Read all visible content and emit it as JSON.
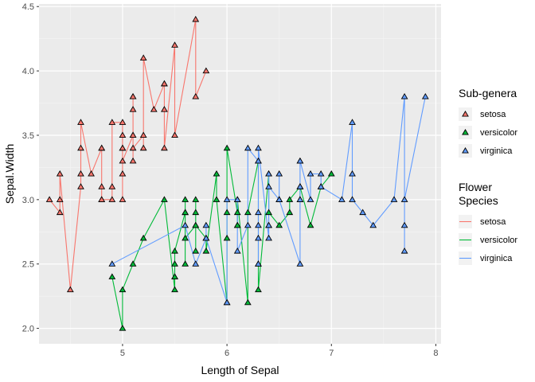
{
  "chart_data": {
    "type": "line",
    "xlabel": "Length of Sepal",
    "ylabel": "Sepal.Width",
    "xlim": [
      4.2,
      8.05
    ],
    "ylim": [
      1.88,
      4.52
    ],
    "xticks": [
      5,
      6,
      7,
      8
    ],
    "yticks": [
      2.0,
      2.5,
      3.0,
      3.5,
      4.0,
      4.5
    ],
    "ytick_labels": [
      "2.0",
      "2.5",
      "3.0",
      "3.5",
      "4.0",
      "4.5"
    ],
    "grid": true,
    "legend_position": "right",
    "shape_legend": {
      "title": "Sub-genera",
      "entries": [
        "setosa",
        "versicolor",
        "virginica"
      ]
    },
    "line_legend": {
      "title_lines": [
        "Flower",
        "Species"
      ],
      "entries": [
        "setosa",
        "versicolor",
        "virginica"
      ]
    },
    "series": [
      {
        "name": "setosa",
        "color": "#F8766D",
        "points": [
          [
            4.3,
            3.0
          ],
          [
            4.4,
            2.9
          ],
          [
            4.4,
            3.0
          ],
          [
            4.4,
            3.2
          ],
          [
            4.5,
            2.3
          ],
          [
            4.6,
            3.1
          ],
          [
            4.6,
            3.2
          ],
          [
            4.6,
            3.4
          ],
          [
            4.6,
            3.6
          ],
          [
            4.7,
            3.2
          ],
          [
            4.8,
            3.4
          ],
          [
            4.8,
            3.1
          ],
          [
            4.8,
            3.0
          ],
          [
            4.8,
            3.4
          ],
          [
            4.8,
            3.0
          ],
          [
            4.9,
            3.0
          ],
          [
            4.9,
            3.1
          ],
          [
            4.9,
            3.6
          ],
          [
            5.0,
            3.6
          ],
          [
            5.0,
            3.4
          ],
          [
            5.0,
            3.0
          ],
          [
            5.0,
            3.4
          ],
          [
            5.0,
            3.2
          ],
          [
            5.0,
            3.5
          ],
          [
            5.0,
            3.3
          ],
          [
            5.1,
            3.5
          ],
          [
            5.1,
            3.5
          ],
          [
            5.1,
            3.8
          ],
          [
            5.1,
            3.8
          ],
          [
            5.1,
            3.7
          ],
          [
            5.1,
            3.3
          ],
          [
            5.1,
            3.4
          ],
          [
            5.2,
            3.5
          ],
          [
            5.2,
            3.4
          ],
          [
            5.2,
            4.1
          ],
          [
            5.3,
            3.7
          ],
          [
            5.4,
            3.9
          ],
          [
            5.4,
            3.7
          ],
          [
            5.4,
            3.9
          ],
          [
            5.4,
            3.4
          ],
          [
            5.5,
            4.2
          ],
          [
            5.5,
            3.5
          ],
          [
            5.7,
            4.4
          ],
          [
            5.7,
            3.8
          ],
          [
            5.8,
            4.0
          ]
        ]
      },
      {
        "name": "versicolor",
        "color": "#00BA38",
        "points": [
          [
            4.9,
            2.4
          ],
          [
            5.0,
            2.0
          ],
          [
            5.0,
            2.3
          ],
          [
            5.1,
            2.5
          ],
          [
            5.2,
            2.7
          ],
          [
            5.4,
            3.0
          ],
          [
            5.5,
            2.3
          ],
          [
            5.5,
            2.4
          ],
          [
            5.5,
            2.4
          ],
          [
            5.5,
            2.5
          ],
          [
            5.5,
            2.6
          ],
          [
            5.6,
            2.9
          ],
          [
            5.6,
            3.0
          ],
          [
            5.6,
            2.5
          ],
          [
            5.6,
            2.9
          ],
          [
            5.6,
            2.7
          ],
          [
            5.7,
            2.8
          ],
          [
            5.7,
            2.6
          ],
          [
            5.7,
            3.0
          ],
          [
            5.7,
            2.9
          ],
          [
            5.7,
            2.8
          ],
          [
            5.8,
            2.7
          ],
          [
            5.8,
            2.6
          ],
          [
            5.9,
            3.2
          ],
          [
            5.9,
            3.0
          ],
          [
            6.0,
            2.2
          ],
          [
            6.0,
            2.9
          ],
          [
            6.0,
            2.7
          ],
          [
            6.0,
            3.4
          ],
          [
            6.1,
            2.9
          ],
          [
            6.1,
            2.8
          ],
          [
            6.1,
            2.8
          ],
          [
            6.1,
            3.0
          ],
          [
            6.2,
            2.2
          ],
          [
            6.2,
            2.9
          ],
          [
            6.3,
            3.3
          ],
          [
            6.3,
            2.5
          ],
          [
            6.3,
            2.3
          ],
          [
            6.4,
            3.2
          ],
          [
            6.4,
            2.9
          ],
          [
            6.5,
            2.8
          ],
          [
            6.6,
            2.9
          ],
          [
            6.6,
            3.0
          ],
          [
            6.7,
            3.1
          ],
          [
            6.7,
            3.0
          ],
          [
            6.7,
            3.1
          ],
          [
            6.8,
            2.8
          ],
          [
            6.9,
            3.1
          ],
          [
            7.0,
            3.2
          ]
        ]
      },
      {
        "name": "virginica",
        "color": "#619CFF",
        "points": [
          [
            4.9,
            2.5
          ],
          [
            5.6,
            2.8
          ],
          [
            5.7,
            2.5
          ],
          [
            5.8,
            2.7
          ],
          [
            5.8,
            2.8
          ],
          [
            5.8,
            2.7
          ],
          [
            6.0,
            2.2
          ],
          [
            6.0,
            3.0
          ],
          [
            6.1,
            3.0
          ],
          [
            6.1,
            2.6
          ],
          [
            6.2,
            2.8
          ],
          [
            6.2,
            3.4
          ],
          [
            6.3,
            3.3
          ],
          [
            6.3,
            2.9
          ],
          [
            6.3,
            2.5
          ],
          [
            6.3,
            2.8
          ],
          [
            6.3,
            2.7
          ],
          [
            6.3,
            3.4
          ],
          [
            6.4,
            2.7
          ],
          [
            6.4,
            3.2
          ],
          [
            6.4,
            2.8
          ],
          [
            6.4,
            2.8
          ],
          [
            6.4,
            3.1
          ],
          [
            6.5,
            3.0
          ],
          [
            6.5,
            3.2
          ],
          [
            6.5,
            3.0
          ],
          [
            6.5,
            3.0
          ],
          [
            6.7,
            2.5
          ],
          [
            6.7,
            3.3
          ],
          [
            6.7,
            3.1
          ],
          [
            6.7,
            3.0
          ],
          [
            6.7,
            3.3
          ],
          [
            6.8,
            3.0
          ],
          [
            6.8,
            3.2
          ],
          [
            6.9,
            3.2
          ],
          [
            6.9,
            3.1
          ],
          [
            6.9,
            3.1
          ],
          [
            7.1,
            3.0
          ],
          [
            7.2,
            3.6
          ],
          [
            7.2,
            3.2
          ],
          [
            7.2,
            3.0
          ],
          [
            7.3,
            2.9
          ],
          [
            7.4,
            2.8
          ],
          [
            7.6,
            3.0
          ],
          [
            7.7,
            3.8
          ],
          [
            7.7,
            2.6
          ],
          [
            7.7,
            2.8
          ],
          [
            7.7,
            3.0
          ],
          [
            7.9,
            3.8
          ]
        ]
      }
    ]
  }
}
